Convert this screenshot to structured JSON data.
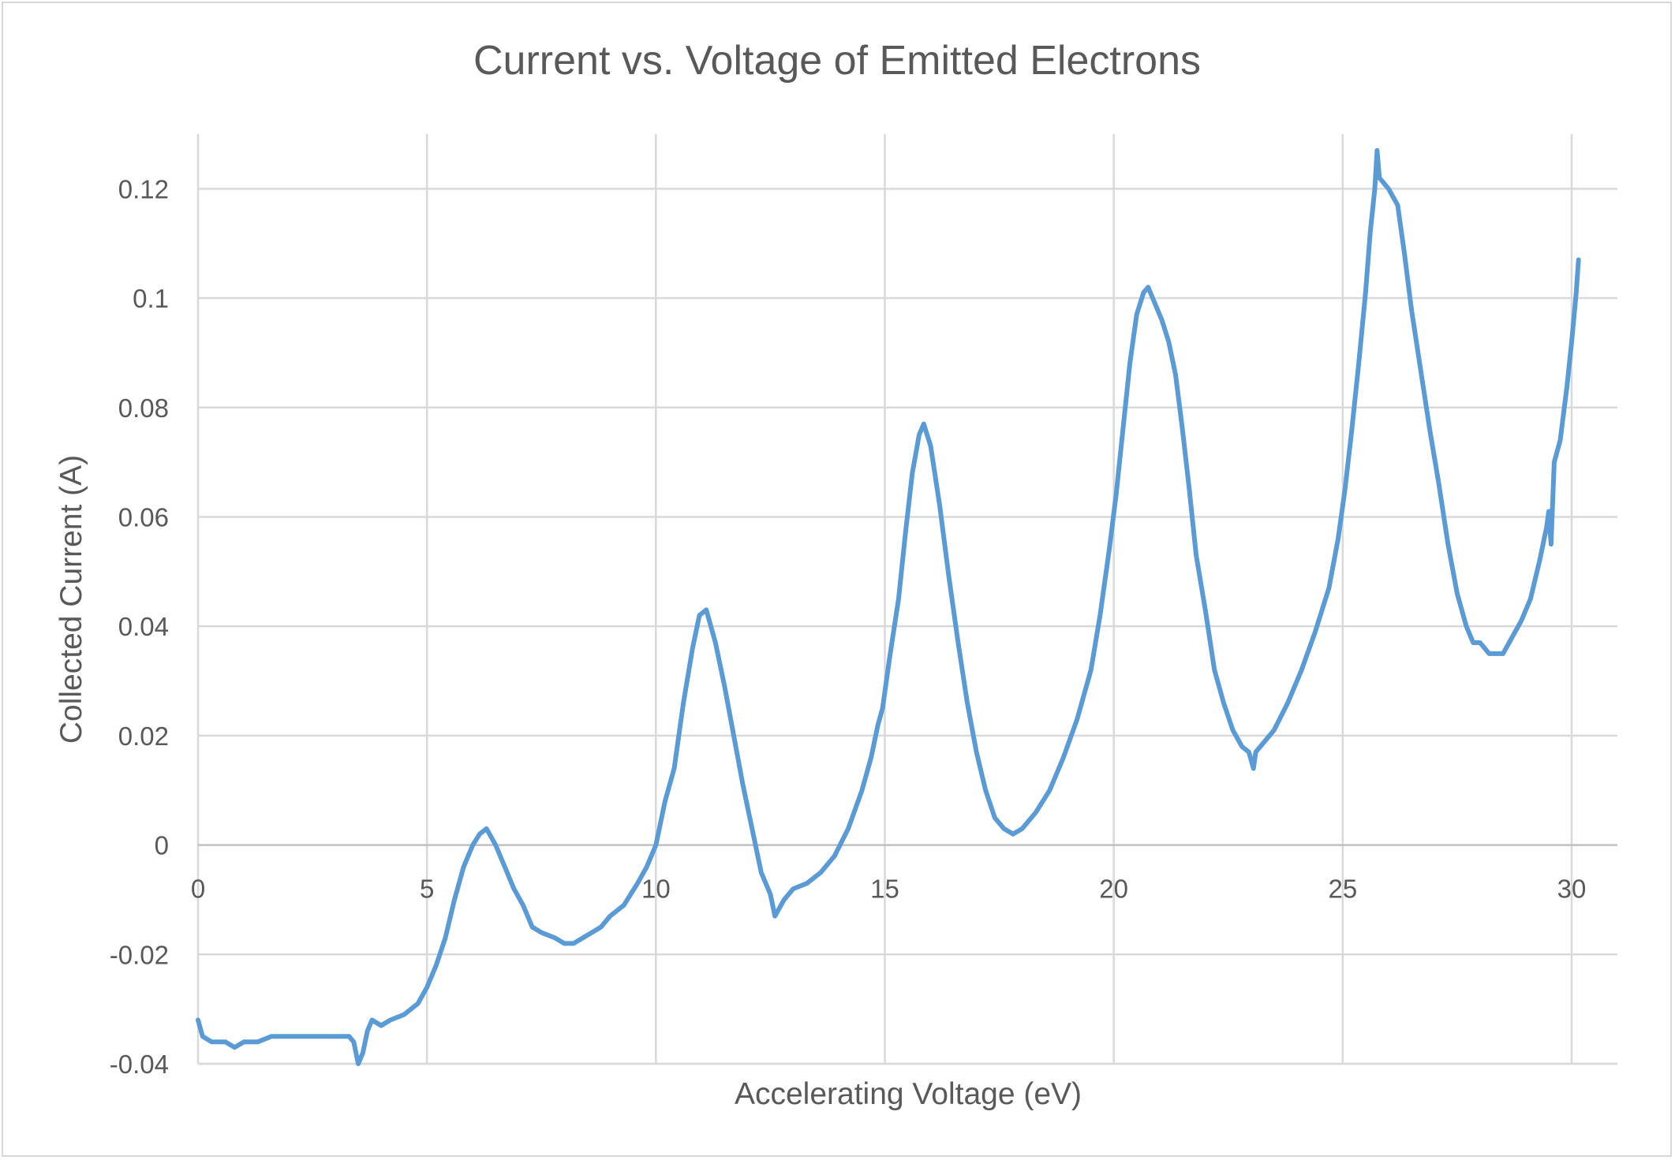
{
  "chart_data": {
    "type": "line",
    "title": "Current vs. Voltage of Emitted Electrons",
    "xlabel": "Accelerating Voltage (eV)",
    "ylabel": "Collected Current (A)",
    "xlim": [
      0,
      31
    ],
    "ylim": [
      -0.04,
      0.13
    ],
    "xticks": [
      0,
      5,
      10,
      15,
      20,
      25,
      30
    ],
    "xtick_labels": [
      "0",
      "5",
      "10",
      "15",
      "20",
      "25",
      "30"
    ],
    "yticks": [
      -0.04,
      -0.02,
      0,
      0.02,
      0.04,
      0.06,
      0.08,
      0.1,
      0.12
    ],
    "ytick_labels": [
      "-0.04",
      "-0.02",
      "0",
      "0.02",
      "0.04",
      "0.06",
      "0.08",
      "0.1",
      "0.12"
    ],
    "grid": true,
    "legend": "none",
    "series": [
      {
        "color": "#5b9bd5",
        "points": [
          [
            0.0,
            -0.032
          ],
          [
            0.1,
            -0.035
          ],
          [
            0.3,
            -0.036
          ],
          [
            0.6,
            -0.036
          ],
          [
            0.8,
            -0.037
          ],
          [
            1.0,
            -0.036
          ],
          [
            1.3,
            -0.036
          ],
          [
            1.6,
            -0.035
          ],
          [
            2.0,
            -0.035
          ],
          [
            2.5,
            -0.035
          ],
          [
            3.0,
            -0.035
          ],
          [
            3.3,
            -0.035
          ],
          [
            3.4,
            -0.036
          ],
          [
            3.5,
            -0.04
          ],
          [
            3.6,
            -0.038
          ],
          [
            3.7,
            -0.034
          ],
          [
            3.8,
            -0.032
          ],
          [
            4.0,
            -0.033
          ],
          [
            4.2,
            -0.032
          ],
          [
            4.5,
            -0.031
          ],
          [
            4.8,
            -0.029
          ],
          [
            5.0,
            -0.026
          ],
          [
            5.2,
            -0.022
          ],
          [
            5.4,
            -0.017
          ],
          [
            5.6,
            -0.01
          ],
          [
            5.8,
            -0.004
          ],
          [
            6.0,
            0.0
          ],
          [
            6.15,
            0.002
          ],
          [
            6.3,
            0.003
          ],
          [
            6.5,
            0.0
          ],
          [
            6.7,
            -0.004
          ],
          [
            6.9,
            -0.008
          ],
          [
            7.1,
            -0.011
          ],
          [
            7.3,
            -0.015
          ],
          [
            7.5,
            -0.016
          ],
          [
            7.8,
            -0.017
          ],
          [
            8.0,
            -0.018
          ],
          [
            8.2,
            -0.018
          ],
          [
            8.4,
            -0.017
          ],
          [
            8.6,
            -0.016
          ],
          [
            8.8,
            -0.015
          ],
          [
            9.0,
            -0.013
          ],
          [
            9.3,
            -0.011
          ],
          [
            9.6,
            -0.007
          ],
          [
            9.8,
            -0.004
          ],
          [
            10.0,
            0.0
          ],
          [
            10.2,
            0.008
          ],
          [
            10.4,
            0.014
          ],
          [
            10.6,
            0.026
          ],
          [
            10.8,
            0.036
          ],
          [
            10.95,
            0.042
          ],
          [
            11.1,
            0.043
          ],
          [
            11.3,
            0.037
          ],
          [
            11.5,
            0.029
          ],
          [
            11.7,
            0.02
          ],
          [
            11.9,
            0.011
          ],
          [
            12.1,
            0.003
          ],
          [
            12.3,
            -0.005
          ],
          [
            12.5,
            -0.009
          ],
          [
            12.6,
            -0.013
          ],
          [
            12.8,
            -0.01
          ],
          [
            13.0,
            -0.008
          ],
          [
            13.3,
            -0.007
          ],
          [
            13.6,
            -0.005
          ],
          [
            13.9,
            -0.002
          ],
          [
            14.2,
            0.003
          ],
          [
            14.5,
            0.01
          ],
          [
            14.7,
            0.016
          ],
          [
            14.85,
            0.022
          ],
          [
            14.95,
            0.025
          ],
          [
            15.1,
            0.034
          ],
          [
            15.3,
            0.045
          ],
          [
            15.45,
            0.057
          ],
          [
            15.6,
            0.068
          ],
          [
            15.75,
            0.075
          ],
          [
            15.85,
            0.077
          ],
          [
            16.0,
            0.073
          ],
          [
            16.2,
            0.062
          ],
          [
            16.4,
            0.049
          ],
          [
            16.6,
            0.037
          ],
          [
            16.8,
            0.026
          ],
          [
            17.0,
            0.017
          ],
          [
            17.2,
            0.01
          ],
          [
            17.4,
            0.005
          ],
          [
            17.6,
            0.003
          ],
          [
            17.8,
            0.002
          ],
          [
            18.0,
            0.003
          ],
          [
            18.3,
            0.006
          ],
          [
            18.6,
            0.01
          ],
          [
            18.9,
            0.016
          ],
          [
            19.2,
            0.023
          ],
          [
            19.5,
            0.032
          ],
          [
            19.7,
            0.042
          ],
          [
            19.9,
            0.054
          ],
          [
            20.05,
            0.064
          ],
          [
            20.2,
            0.076
          ],
          [
            20.35,
            0.088
          ],
          [
            20.5,
            0.097
          ],
          [
            20.65,
            0.101
          ],
          [
            20.75,
            0.102
          ],
          [
            20.9,
            0.099
          ],
          [
            21.05,
            0.096
          ],
          [
            21.2,
            0.092
          ],
          [
            21.35,
            0.086
          ],
          [
            21.5,
            0.076
          ],
          [
            21.65,
            0.065
          ],
          [
            21.8,
            0.053
          ],
          [
            22.0,
            0.043
          ],
          [
            22.2,
            0.032
          ],
          [
            22.4,
            0.026
          ],
          [
            22.6,
            0.021
          ],
          [
            22.8,
            0.018
          ],
          [
            22.95,
            0.017
          ],
          [
            23.05,
            0.014
          ],
          [
            23.1,
            0.017
          ],
          [
            23.3,
            0.019
          ],
          [
            23.5,
            0.021
          ],
          [
            23.8,
            0.026
          ],
          [
            24.1,
            0.032
          ],
          [
            24.4,
            0.039
          ],
          [
            24.7,
            0.047
          ],
          [
            24.9,
            0.056
          ],
          [
            25.05,
            0.065
          ],
          [
            25.2,
            0.076
          ],
          [
            25.35,
            0.088
          ],
          [
            25.5,
            0.101
          ],
          [
            25.6,
            0.112
          ],
          [
            25.7,
            0.12
          ],
          [
            25.75,
            0.127
          ],
          [
            25.8,
            0.122
          ],
          [
            25.9,
            0.121
          ],
          [
            26.0,
            0.12
          ],
          [
            26.2,
            0.117
          ],
          [
            26.35,
            0.108
          ],
          [
            26.5,
            0.098
          ],
          [
            26.7,
            0.087
          ],
          [
            26.9,
            0.076
          ],
          [
            27.1,
            0.066
          ],
          [
            27.3,
            0.055
          ],
          [
            27.5,
            0.046
          ],
          [
            27.7,
            0.04
          ],
          [
            27.85,
            0.037
          ],
          [
            28.0,
            0.037
          ],
          [
            28.2,
            0.035
          ],
          [
            28.5,
            0.035
          ],
          [
            28.7,
            0.038
          ],
          [
            28.9,
            0.041
          ],
          [
            29.1,
            0.045
          ],
          [
            29.3,
            0.052
          ],
          [
            29.45,
            0.058
          ],
          [
            29.5,
            0.061
          ],
          [
            29.55,
            0.055
          ],
          [
            29.62,
            0.07
          ],
          [
            29.75,
            0.074
          ],
          [
            29.9,
            0.084
          ],
          [
            30.0,
            0.092
          ],
          [
            30.1,
            0.101
          ],
          [
            30.15,
            0.107
          ]
        ]
      }
    ]
  }
}
